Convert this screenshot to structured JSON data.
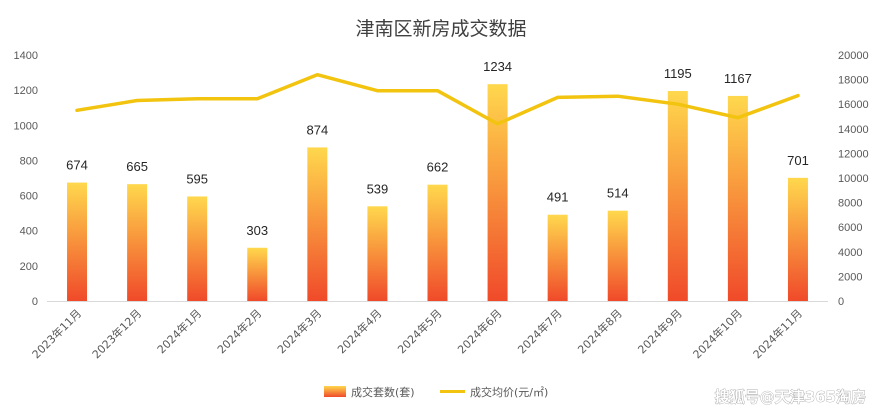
{
  "chart_data": {
    "type": "bar",
    "title": "津南区新房成交数据",
    "categories": [
      "2023年11月",
      "2023年12月",
      "2024年1月",
      "2024年2月",
      "2024年3月",
      "2024年4月",
      "2024年5月",
      "2024年6月",
      "2024年7月",
      "2024年8月",
      "2024年9月",
      "2024年10月",
      "2024年11月"
    ],
    "series": [
      {
        "name": "成交套数(套)",
        "type": "bar",
        "axis": "left",
        "values": [
          674,
          665,
          595,
          303,
          874,
          539,
          662,
          1234,
          491,
          514,
          1195,
          1167,
          701
        ],
        "gradient": [
          "#ffd84d",
          "#f04a2a"
        ]
      },
      {
        "name": "成交均价(元/㎡)",
        "type": "line",
        "axis": "right",
        "values": [
          15500,
          16300,
          16450,
          16450,
          18400,
          17100,
          17100,
          14400,
          16550,
          16650,
          16000,
          14900,
          16700
        ],
        "color": "#f2c40f"
      }
    ],
    "y_left": {
      "min": 0,
      "max": 1400,
      "ticks": [
        0,
        200,
        400,
        600,
        800,
        1000,
        1200,
        1400
      ]
    },
    "y_right": {
      "min": 0,
      "max": 20000,
      "ticks": [
        0,
        2000,
        4000,
        6000,
        8000,
        10000,
        12000,
        14000,
        16000,
        18000,
        20000
      ]
    },
    "grid": false,
    "legend_position": "bottom"
  },
  "watermark": "搜狐号@天津365淘房"
}
